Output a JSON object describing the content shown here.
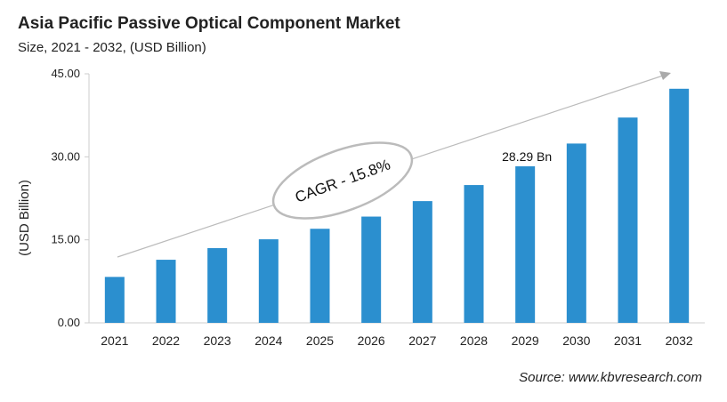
{
  "chart_data": {
    "type": "bar",
    "title": "Asia Pacific Passive Optical Component  Market",
    "subtitle": "Size, 2021 - 2032, (USD Billion)",
    "xlabel": "",
    "ylabel": "(USD Billion)",
    "categories": [
      "2021",
      "2022",
      "2023",
      "2024",
      "2025",
      "2026",
      "2027",
      "2028",
      "2029",
      "2030",
      "2031",
      "2032"
    ],
    "values": [
      8.3,
      11.4,
      13.5,
      15.1,
      17.0,
      19.2,
      22.0,
      24.9,
      28.29,
      32.4,
      37.1,
      42.3
    ],
    "ylim": [
      0,
      45
    ],
    "yticks": [
      "0.00",
      "15.00",
      "30.00",
      "45.00"
    ],
    "ytick_values": [
      0,
      15,
      30,
      45
    ],
    "grid": false,
    "bar_color": "#2b8fcf",
    "annotations": {
      "data_label": "28.29 Bn",
      "data_label_category": "2029",
      "cagr": "CAGR - 15.8%"
    },
    "source": "Source: www.kbvresearch.com"
  }
}
